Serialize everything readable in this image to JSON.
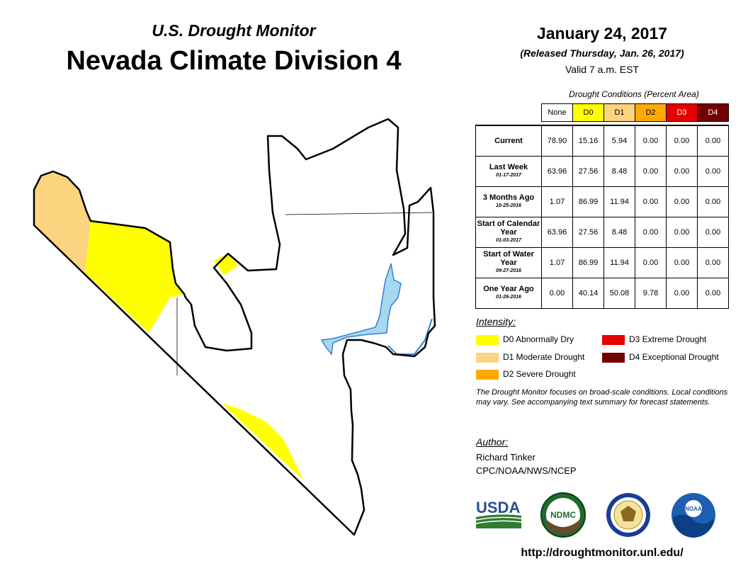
{
  "header": {
    "supertitle": "U.S. Drought Monitor",
    "title": "Nevada Climate Division 4",
    "date": "January 24, 2017",
    "released": "(Released Thursday, Jan. 26, 2017)",
    "valid": "Valid 7 a.m. EST"
  },
  "table": {
    "caption": "Drought Conditions (Percent Area)",
    "columns": [
      {
        "label": "None",
        "color": "#ffffff",
        "text_color": "#000000"
      },
      {
        "label": "D0",
        "color": "#ffff00",
        "text_color": "#000000"
      },
      {
        "label": "D1",
        "color": "#fcd37f",
        "text_color": "#000000"
      },
      {
        "label": "D2",
        "color": "#ffaa00",
        "text_color": "#000000"
      },
      {
        "label": "D3",
        "color": "#e60000",
        "text_color": "#ffffff"
      },
      {
        "label": "D4",
        "color": "#730000",
        "text_color": "#ffffff"
      }
    ],
    "rows": [
      {
        "label": "Current",
        "date": "",
        "values": [
          "78.90",
          "15.16",
          "5.94",
          "0.00",
          "0.00",
          "0.00"
        ]
      },
      {
        "label": "Last Week",
        "date": "01-17-2017",
        "values": [
          "63.96",
          "27.56",
          "8.48",
          "0.00",
          "0.00",
          "0.00"
        ]
      },
      {
        "label": "3 Months Ago",
        "date": "10-25-2016",
        "values": [
          "1.07",
          "86.99",
          "11.94",
          "0.00",
          "0.00",
          "0.00"
        ]
      },
      {
        "label": "Start of Calendar Year",
        "date": "01-03-2017",
        "values": [
          "63.96",
          "27.56",
          "8.48",
          "0.00",
          "0.00",
          "0.00"
        ]
      },
      {
        "label": "Start of Water Year",
        "date": "09-27-2016",
        "values": [
          "1.07",
          "86.99",
          "11.94",
          "0.00",
          "0.00",
          "0.00"
        ]
      },
      {
        "label": "One Year Ago",
        "date": "01-26-2016",
        "values": [
          "0.00",
          "40.14",
          "50.08",
          "9.78",
          "0.00",
          "0.00"
        ]
      }
    ]
  },
  "legend": {
    "title": "Intensity:",
    "items": [
      {
        "code": "D0",
        "label": "D0 Abnormally Dry",
        "color": "#ffff00"
      },
      {
        "code": "D1",
        "label": "D1 Moderate Drought",
        "color": "#fcd37f"
      },
      {
        "code": "D2",
        "label": "D2 Severe Drought",
        "color": "#ffaa00"
      },
      {
        "code": "D3",
        "label": "D3 Extreme Drought",
        "color": "#e60000"
      },
      {
        "code": "D4",
        "label": "D4 Exceptional Drought",
        "color": "#730000"
      }
    ]
  },
  "note": "The Drought Monitor focuses on broad-scale conditions. Local conditions may vary. See accompanying text summary for forecast statements.",
  "author": {
    "label": "Author:",
    "name": "Richard Tinker",
    "org": "CPC/NOAA/NWS/NCEP"
  },
  "logos": {
    "usda": "USDA",
    "ndmc": "NDMC",
    "noaa": "NOAA"
  },
  "url": "http://droughtmonitor.unl.edu/",
  "map": {
    "region": "Nevada Climate Division 4",
    "colors": {
      "d0": "#ffff00",
      "d1": "#fcd37f",
      "water": "#a6d8f0",
      "water_edge": "#3a7fd0",
      "outline": "#000000"
    }
  }
}
